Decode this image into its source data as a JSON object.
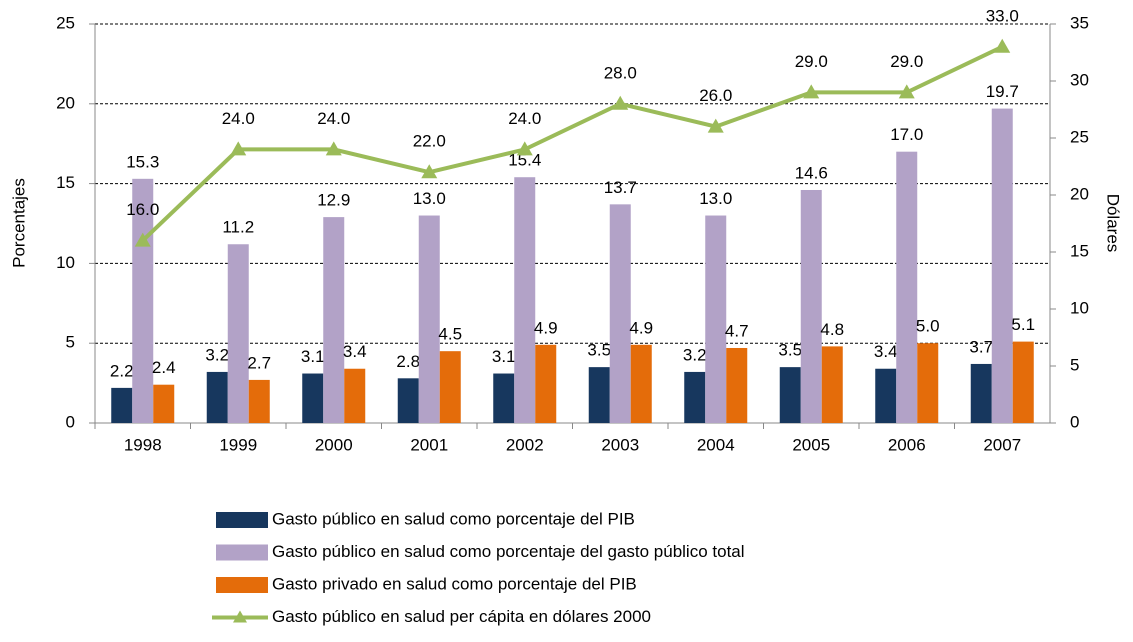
{
  "chart_data": {
    "type": "bar-line",
    "categories": [
      "1998",
      "1999",
      "2000",
      "2001",
      "2002",
      "2003",
      "2004",
      "2005",
      "2006",
      "2007"
    ],
    "y_label": "Porcentajes",
    "y2_label": "Dólares",
    "ylim": [
      0,
      25
    ],
    "yticks": [
      0,
      5,
      10,
      15,
      20,
      25
    ],
    "y2lim": [
      0,
      35
    ],
    "y2ticks": [
      0,
      5,
      10,
      15,
      20,
      25,
      30,
      35
    ],
    "grid": true,
    "series": [
      {
        "name": "Gasto público en salud como porcentaje del PIB",
        "type": "bar",
        "color": "#17375e",
        "values": [
          2.2,
          3.2,
          3.1,
          2.8,
          3.1,
          3.5,
          3.2,
          3.5,
          3.4,
          3.7
        ],
        "value_labels": [
          "2.2",
          "3.2",
          "3.1",
          "2.8",
          "3.1",
          "3.5",
          "3.2",
          "3.5",
          "3.4",
          "3.7"
        ]
      },
      {
        "name": "Gasto público en salud como porcentaje del gasto público total",
        "type": "bar",
        "color": "#b2a2c7",
        "values": [
          15.3,
          11.2,
          12.9,
          13.0,
          15.4,
          13.7,
          13.0,
          14.6,
          17.0,
          19.7
        ],
        "value_labels": [
          "15.3",
          "11.2",
          "12.9",
          "13.0",
          "15.4",
          "13.7",
          "13.0",
          "14.6",
          "17.0",
          "19.7"
        ]
      },
      {
        "name": "Gasto privado en salud como porcentaje del PIB",
        "type": "bar",
        "color": "#e46c0a",
        "values": [
          2.4,
          2.7,
          3.4,
          4.5,
          4.9,
          4.9,
          4.7,
          4.8,
          5.0,
          5.1
        ],
        "value_labels": [
          "2.4",
          "2.7",
          "3.4",
          "4.5",
          "4.9",
          "4.9",
          "4.7",
          "4.8",
          "5.0",
          "5.1"
        ]
      },
      {
        "name": "Gasto público en salud per cápita en dólares 2000",
        "type": "line",
        "axis": "y2",
        "color": "#9bbb59",
        "values": [
          16.0,
          24.0,
          24.0,
          22.0,
          24.0,
          28.0,
          26.0,
          29.0,
          29.0,
          33.0
        ],
        "value_labels": [
          "16.0",
          "24.0",
          "24.0",
          "22.0",
          "24.0",
          "28.0",
          "26.0",
          "29.0",
          "29.0",
          "33.0"
        ]
      }
    ]
  }
}
